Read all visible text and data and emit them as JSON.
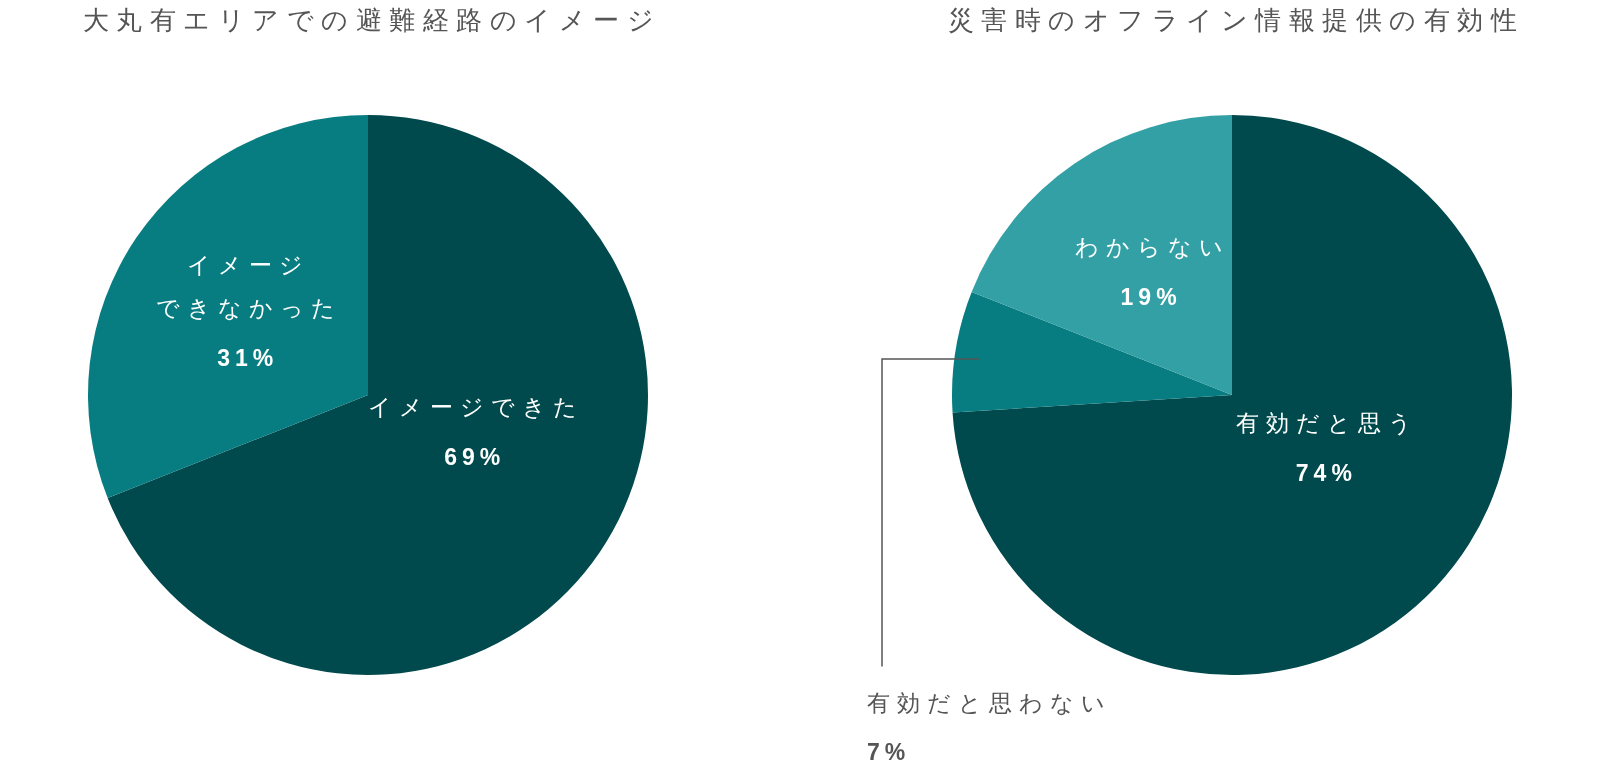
{
  "chart_data": [
    {
      "type": "pie",
      "title": "大丸有エリアでの避難経路のイメージ",
      "categories": [
        "イメージできた",
        "イメージできなかった"
      ],
      "values": [
        69,
        31
      ],
      "colors": [
        "#00494c",
        "#077d81"
      ],
      "value_labels": [
        "69%",
        "31%"
      ]
    },
    {
      "type": "pie",
      "title": "災害時のオフライン情報提供の有効性",
      "categories": [
        "有効だと思う",
        "有効だと思わない",
        "わからない"
      ],
      "values": [
        74,
        7,
        19
      ],
      "colors": [
        "#00494c",
        "#077d81",
        "#33a0a5"
      ],
      "value_labels": [
        "74%",
        "7%",
        "19%"
      ]
    }
  ]
}
